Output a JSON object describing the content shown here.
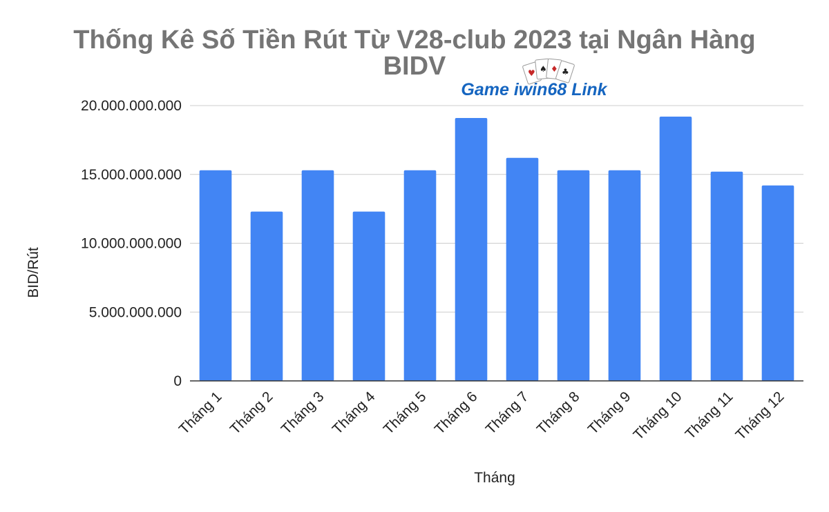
{
  "chart_data": {
    "type": "bar",
    "title_lines": [
      "Thống Kê Số Tiền Rút Từ V28-club 2023 tại Ngân Hàng",
      "BIDV"
    ],
    "xlabel": "Tháng",
    "ylabel": "BID/Rút",
    "categories": [
      "Tháng 1",
      "Tháng 2",
      "Tháng 3",
      "Tháng 4",
      "Tháng 5",
      "Tháng 6",
      "Tháng 7",
      "Tháng 8",
      "Tháng 9",
      "Tháng 10",
      "Tháng 11",
      "Tháng 12"
    ],
    "values": [
      15300000000,
      12300000000,
      15300000000,
      12300000000,
      15300000000,
      19100000000,
      16200000000,
      15300000000,
      15300000000,
      19200000000,
      15200000000,
      14200000000
    ],
    "ylim": [
      0,
      20000000000
    ],
    "yticks": [
      {
        "value": 0,
        "label": "0"
      },
      {
        "value": 5000000000,
        "label": "5.000.000.000"
      },
      {
        "value": 10000000000,
        "label": "10.000.000.000"
      },
      {
        "value": 15000000000,
        "label": "15.000.000.000"
      },
      {
        "value": 20000000000,
        "label": "20.000.000.000"
      }
    ],
    "bar_color": "#4285f4",
    "grid": true,
    "legend": "none"
  },
  "watermark": {
    "text": "Game iwin68 Link",
    "color": "#1565c0"
  }
}
